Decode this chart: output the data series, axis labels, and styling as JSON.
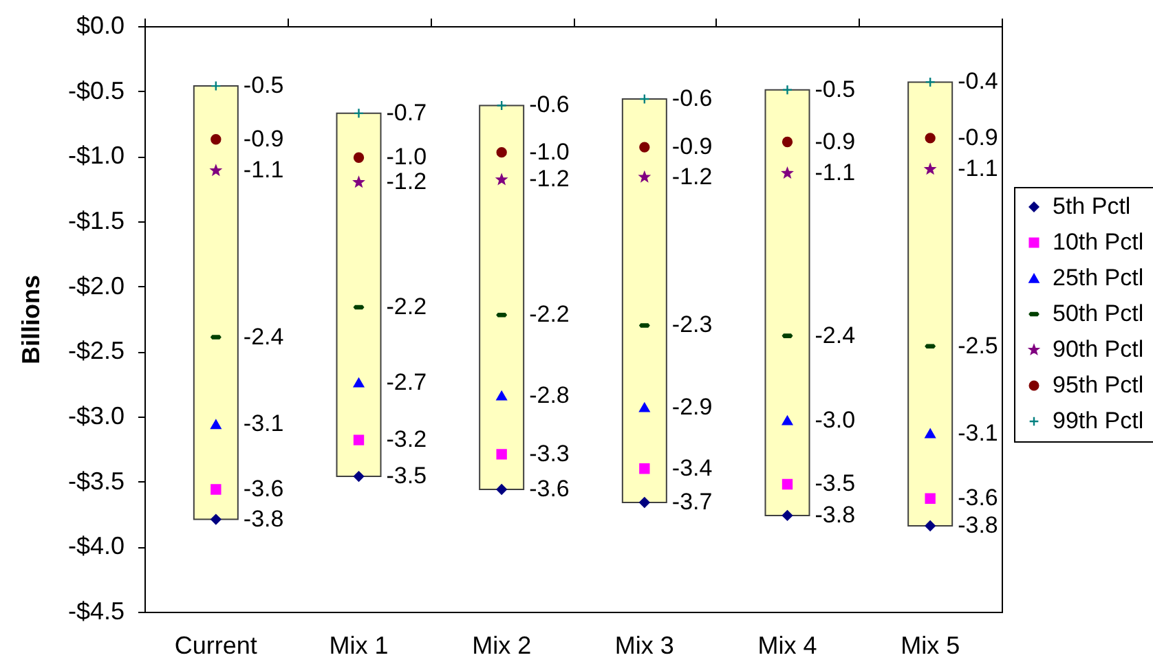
{
  "chart_data": {
    "type": "scatter",
    "ylabel": "Billions",
    "categories": [
      "Current",
      "Mix 1",
      "Mix 2",
      "Mix 3",
      "Mix 4",
      "Mix 5"
    ],
    "ylim": [
      -4.5,
      0
    ],
    "yticks": [
      {
        "value": 0,
        "label": "$0.0"
      },
      {
        "value": -0.5,
        "label": "-$0.5"
      },
      {
        "value": -1,
        "label": "-$1.0"
      },
      {
        "value": -1.5,
        "label": "-$1.5"
      },
      {
        "value": -2,
        "label": "-$2.0"
      },
      {
        "value": -2.5,
        "label": "-$2.5"
      },
      {
        "value": -3,
        "label": "-$3.0"
      },
      {
        "value": -3.5,
        "label": "-$3.5"
      },
      {
        "value": -4,
        "label": "-$4.0"
      },
      {
        "value": -4.5,
        "label": "-$4.5"
      }
    ],
    "grid": false,
    "legend": "right",
    "series": [
      {
        "type": "bar",
        "color": "#ffffc0",
        "base": [
          -3.79,
          -3.46,
          -3.56,
          -3.66,
          -3.76,
          -3.84
        ],
        "values": [
          3.33,
          2.79,
          2.95,
          3.1,
          3.27,
          3.41
        ]
      },
      {
        "name": "5th Pctl",
        "color": "#000080",
        "marker": "diamond",
        "values": [
          -3.79,
          -3.46,
          -3.56,
          -3.66,
          -3.76,
          -3.84
        ],
        "value_labels": [
          "-3.8",
          "-3.5",
          "-3.6",
          "-3.7",
          "-3.8",
          "-3.8"
        ]
      },
      {
        "name": "10th Pctl",
        "color": "#ff00ff",
        "marker": "square",
        "values": [
          -3.56,
          -3.18,
          -3.29,
          -3.4,
          -3.52,
          -3.63
        ],
        "value_labels": [
          "-3.6",
          "-3.2",
          "-3.3",
          "-3.4",
          "-3.5",
          "-3.6"
        ]
      },
      {
        "name": "25th Pctl",
        "color": "#0000ff",
        "marker": "triangle",
        "values": [
          -3.06,
          -2.74,
          -2.84,
          -2.93,
          -3.03,
          -3.13
        ],
        "value_labels": [
          "-3.1",
          "-2.7",
          "-2.8",
          "-2.9",
          "-3.0",
          "-3.1"
        ]
      },
      {
        "name": "50th Pctl",
        "color": "#004000",
        "values": [
          -2.39,
          -2.16,
          -2.22,
          -2.3,
          -2.38,
          -2.46
        ],
        "value_labels": [
          "-2.4",
          "-2.2",
          "-2.2",
          "-2.3",
          "-2.4",
          "-2.5"
        ]
      },
      {
        "name": "90th Pctl",
        "color": "#800080",
        "marker": "star",
        "values": [
          -1.11,
          -1.2,
          -1.18,
          -1.16,
          -1.13,
          -1.1
        ],
        "value_labels": [
          "-1.1",
          "-1.2",
          "-1.2",
          "-1.2",
          "-1.1",
          "-1.1"
        ]
      },
      {
        "name": "95th Pctl",
        "color": "#800000",
        "marker": "circle",
        "values": [
          -0.87,
          -1.01,
          -0.97,
          -0.93,
          -0.89,
          -0.86
        ],
        "value_labels": [
          "-0.9",
          "-1.0",
          "-1.0",
          "-0.9",
          "-0.9",
          "-0.9"
        ]
      },
      {
        "name": "99th Pctl",
        "color": "#008080",
        "marker": "cross",
        "values": [
          -0.46,
          -0.67,
          -0.61,
          -0.56,
          -0.49,
          -0.43
        ],
        "value_labels": [
          "-0.5",
          "-0.7",
          "-0.6",
          "-0.6",
          "-0.5",
          "-0.4"
        ]
      }
    ]
  }
}
